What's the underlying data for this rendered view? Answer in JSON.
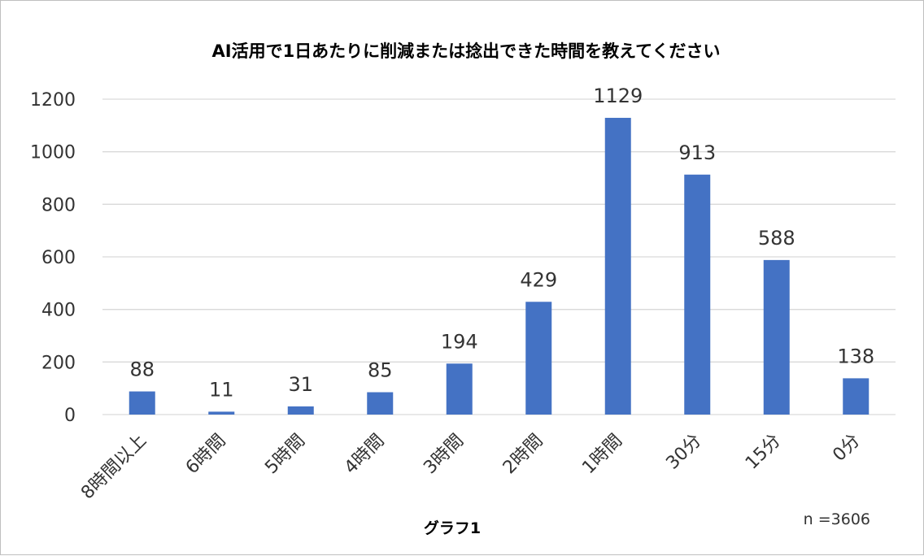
{
  "chart_data": {
    "type": "bar",
    "title": "AI活用で1日あたりに削減または捻出できた時間を教えてください",
    "xlabel": "グラフ1",
    "ylabel": "",
    "categories": [
      "8時間以上",
      "6時間",
      "5時間",
      "4時間",
      "3時間",
      "2時間",
      "1時間",
      "30分",
      "15分",
      "0分"
    ],
    "values": [
      88,
      11,
      31,
      85,
      194,
      429,
      1129,
      913,
      588,
      138
    ],
    "ylim": [
      0,
      1200
    ],
    "yticks": [
      0,
      200,
      400,
      600,
      800,
      1000,
      1200
    ],
    "grid": true,
    "legend": "none",
    "bar_color": "#4472C4",
    "note": "n =3606"
  }
}
